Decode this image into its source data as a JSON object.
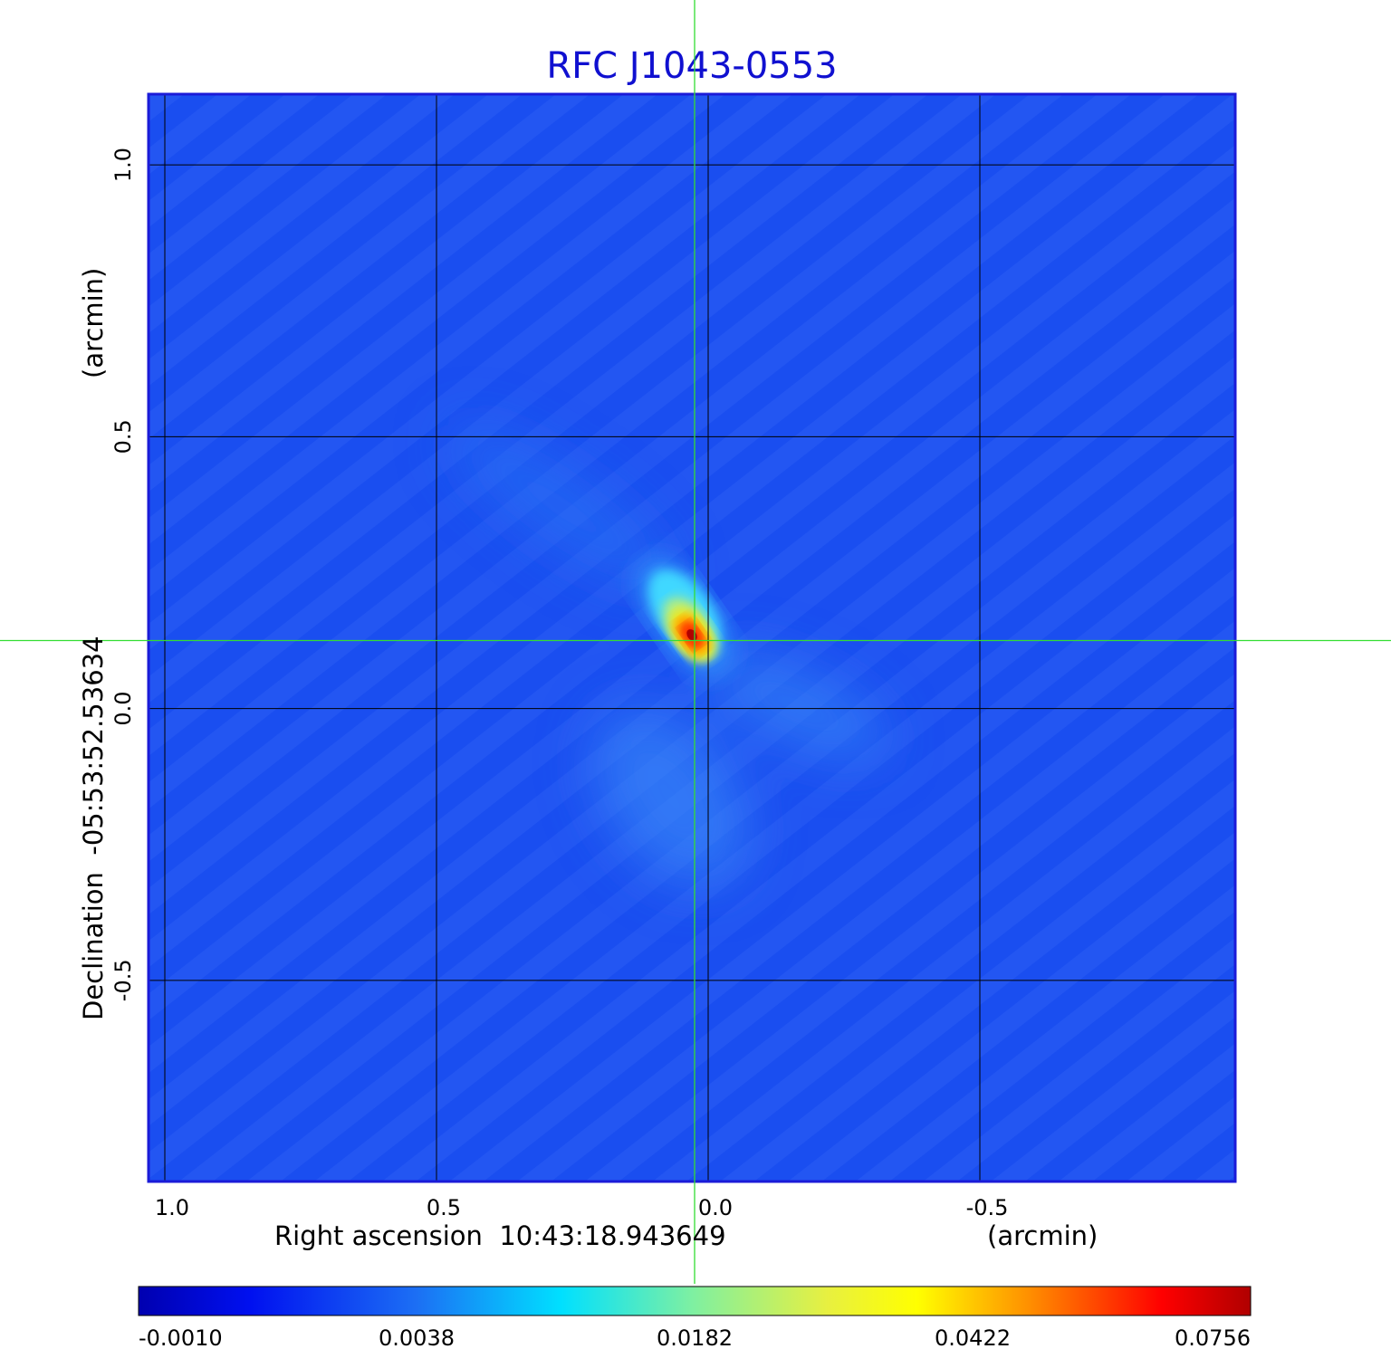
{
  "chart_data": {
    "type": "heatmap",
    "title": "RFC J1043-0553",
    "xlabel": "Right ascension  10:43:18.943649",
    "xunit": "(arcmin)",
    "ylabel": "Declination  -05:53:52.53634",
    "yunit": "(arcmin)",
    "xlim": [
      1.03,
      -0.97
    ],
    "ylim": [
      -0.87,
      1.13
    ],
    "x_ticks": [
      {
        "value": 1.0,
        "label": "1.0"
      },
      {
        "value": 0.5,
        "label": "0.5"
      },
      {
        "value": 0.0,
        "label": "0.0"
      },
      {
        "value": -0.5,
        "label": "-0.5"
      }
    ],
    "y_ticks": [
      {
        "value": 1.0,
        "label": "1.0"
      },
      {
        "value": 0.5,
        "label": "0.5"
      },
      {
        "value": 0.0,
        "label": "0.0"
      },
      {
        "value": -0.5,
        "label": "-0.5"
      }
    ],
    "grid": true,
    "crosshair": {
      "x": 0.025,
      "y": 0.125,
      "color": "#33dd33"
    },
    "source_peak": {
      "x": 0.03,
      "y": 0.135,
      "value": 0.0756
    },
    "colorbar": {
      "labels": [
        "-0.0010",
        "0.0038",
        "0.0182",
        "0.0422",
        "0.0756"
      ],
      "colormap": "jet"
    },
    "colors": {
      "background_field": "#1a4ef0",
      "title": "#1010d0"
    }
  }
}
